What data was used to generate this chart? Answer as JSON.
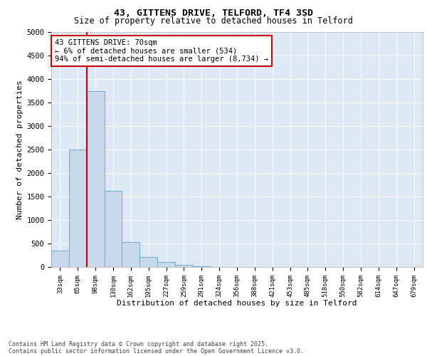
{
  "title1": "43, GITTENS DRIVE, TELFORD, TF4 3SD",
  "title2": "Size of property relative to detached houses in Telford",
  "xlabel": "Distribution of detached houses by size in Telford",
  "ylabel": "Number of detached properties",
  "categories": [
    "33sqm",
    "65sqm",
    "98sqm",
    "130sqm",
    "162sqm",
    "195sqm",
    "227sqm",
    "259sqm",
    "291sqm",
    "324sqm",
    "356sqm",
    "388sqm",
    "421sqm",
    "453sqm",
    "485sqm",
    "518sqm",
    "550sqm",
    "582sqm",
    "614sqm",
    "647sqm",
    "679sqm"
  ],
  "values": [
    350,
    2500,
    3750,
    1620,
    530,
    210,
    100,
    50,
    10,
    0,
    0,
    0,
    0,
    0,
    0,
    0,
    0,
    0,
    0,
    0,
    0
  ],
  "bar_color": "#c9d9ec",
  "bar_edge_color": "#7aafd4",
  "vline_x": 1.5,
  "vline_color": "#cc0000",
  "annotation_text": "43 GITTENS DRIVE: 70sqm\n← 6% of detached houses are smaller (534)\n94% of semi-detached houses are larger (8,734) →",
  "annotation_box_color": "#cc0000",
  "annotation_text_color": "#000000",
  "ylim": [
    0,
    5000
  ],
  "yticks": [
    0,
    500,
    1000,
    1500,
    2000,
    2500,
    3000,
    3500,
    4000,
    4500,
    5000
  ],
  "grid_color": "#ffffff",
  "bg_color": "#dce9f5",
  "footer1": "Contains HM Land Registry data © Crown copyright and database right 2025.",
  "footer2": "Contains public sector information licensed under the Open Government Licence v3.0."
}
